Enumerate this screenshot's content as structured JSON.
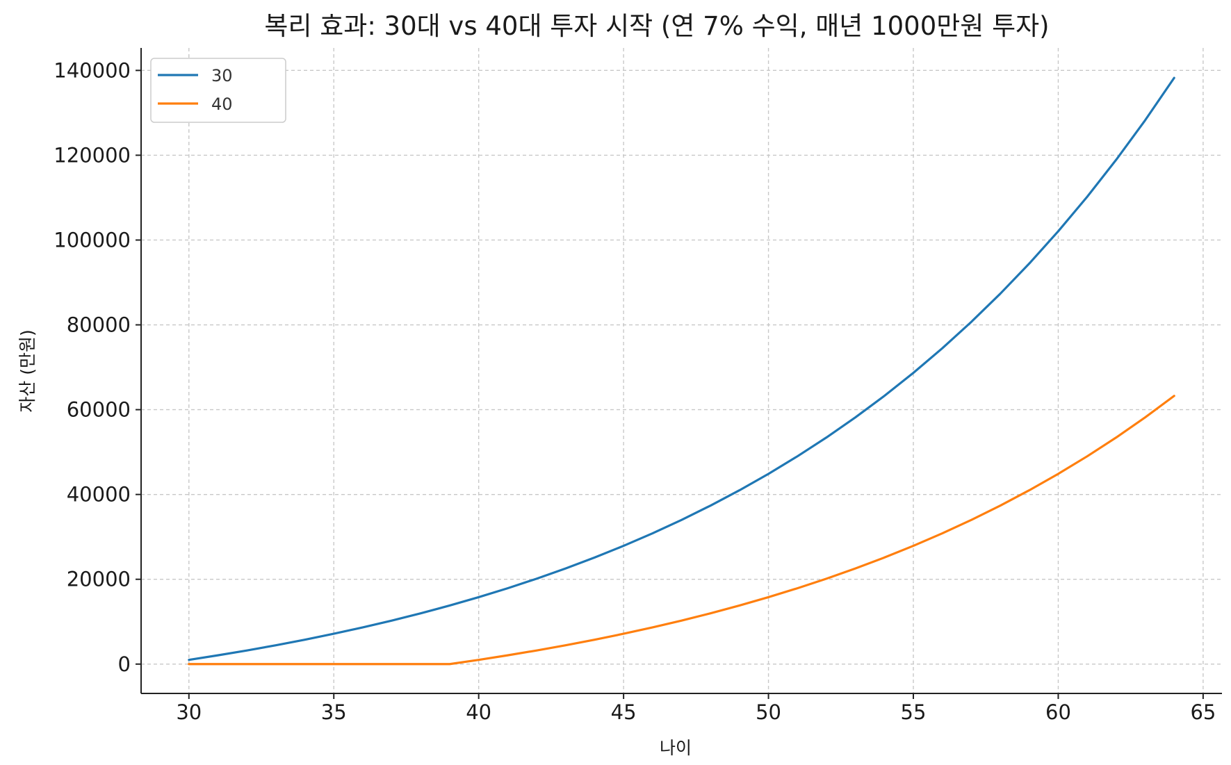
{
  "chart_data": {
    "type": "line",
    "title": "복리 효과: 30대 vs 40대 투자 시작 (연 7% 수익, 매년 1000만원 투자)",
    "xlabel": "나이",
    "ylabel": "자산 (만원)",
    "xlim": [
      28.35,
      65.65
    ],
    "ylim": [
      -6919,
      145300
    ],
    "xticks": [
      30,
      35,
      40,
      45,
      50,
      55,
      60,
      65
    ],
    "yticks": [
      0,
      20000,
      40000,
      60000,
      80000,
      100000,
      120000,
      140000
    ],
    "grid": true,
    "legend_position": "top-left",
    "x": [
      30,
      31,
      32,
      33,
      34,
      35,
      36,
      37,
      38,
      39,
      40,
      41,
      42,
      43,
      44,
      45,
      46,
      47,
      48,
      49,
      50,
      51,
      52,
      53,
      54,
      55,
      56,
      57,
      58,
      59,
      60,
      61,
      62,
      63,
      64
    ],
    "series": [
      {
        "name": "30",
        "color": "#1f77b4",
        "values": [
          1000,
          2070,
          3215,
          4440,
          5751,
          7153,
          8654,
          10260,
          11978,
          13816,
          15784,
          17888,
          20141,
          22550,
          25129,
          27888,
          30840,
          33999,
          37379,
          40995,
          44865,
          49006,
          53436,
          58177,
          63249,
          68676,
          74484,
          80698,
          87347,
          94461,
          102073,
          110218,
          118933,
          128258,
          138236
        ]
      },
      {
        "name": "40",
        "color": "#ff7f0e",
        "values": [
          0,
          0,
          0,
          0,
          0,
          0,
          0,
          0,
          0,
          0,
          1000,
          2070,
          3215,
          4440,
          5751,
          7153,
          8654,
          10260,
          11978,
          13816,
          15784,
          17888,
          20141,
          22550,
          25129,
          27888,
          30840,
          33999,
          37379,
          40995,
          44865,
          49006,
          53436,
          58177,
          63249
        ]
      }
    ]
  }
}
